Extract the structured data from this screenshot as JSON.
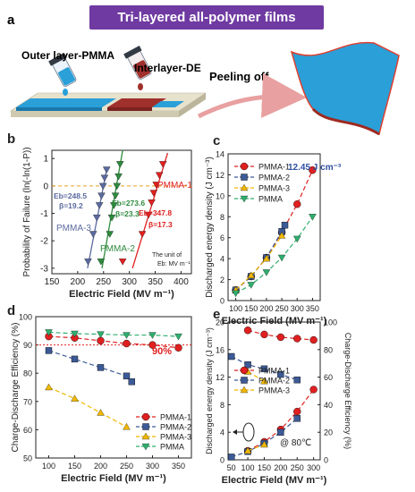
{
  "banner": "Tri-layered all-polymer films",
  "schematic": {
    "panel_label": "a",
    "outer_layer_label": "Outer layer-PMMA",
    "interlayer_label": "Interlayer-DE",
    "peeling_label": "Peeling off"
  },
  "chart_data": [
    {
      "panel": "b",
      "type": "line",
      "xlabel": "Electric Field (MV m⁻¹)",
      "ylabel": "Probability of Failure (ln(-ln(1-P))",
      "xlim": [
        150,
        420
      ],
      "ylim": [
        -3.2,
        1.3
      ],
      "xticks": [
        150,
        200,
        250,
        300,
        350,
        400
      ],
      "yticks": [
        -3,
        -2,
        -1,
        0,
        1
      ],
      "reference_line_y": 0,
      "note": [
        "The unit of",
        "Eb: MV m⁻¹"
      ],
      "series": [
        {
          "name": "PMMA-3",
          "color": "#5b6aa0",
          "eb_label": "Eb=248.5",
          "beta_label": "β=19.2",
          "fit": [
            [
              219,
              -3.0
            ],
            [
              256,
              0.6
            ]
          ],
          "x": [
            220,
            230,
            237,
            242,
            246,
            249,
            252,
            256
          ],
          "y": [
            -2.75,
            -1.75,
            -1.15,
            -0.7,
            -0.35,
            0.0,
            0.3,
            0.6
          ]
        },
        {
          "name": "PMMA-2",
          "color": "#2e8b3e",
          "eb_label": "Eb=273.6",
          "beta_label": "β=23.3",
          "fit": [
            [
              247,
              -3.0
            ],
            [
              287,
              1.3
            ]
          ],
          "x": [
            245,
            262,
            266,
            270,
            273,
            276,
            279,
            282
          ],
          "y": [
            -2.75,
            -1.75,
            -1.15,
            -0.7,
            -0.35,
            0.0,
            0.35,
            0.8
          ]
        },
        {
          "name": "PMMA-1",
          "color": "#e02020",
          "eb_label": "Eb=347.8",
          "beta_label": "β=17.3",
          "fit": [
            [
              306,
              -3.0
            ],
            [
              374,
              1.2
            ]
          ],
          "x": [
            287,
            325,
            337,
            343,
            347,
            352,
            358,
            365
          ],
          "y": [
            -2.75,
            -1.75,
            -1.05,
            -0.6,
            -0.25,
            0.05,
            0.4,
            0.8
          ]
        }
      ]
    },
    {
      "panel": "c",
      "type": "line",
      "xlabel": "Electric Field (MV m⁻¹)",
      "ylabel": "Discharged energy density (J cm⁻³)",
      "xlim": [
        75,
        375
      ],
      "ylim": [
        0,
        14
      ],
      "xticks": [
        100,
        150,
        200,
        250,
        300,
        350
      ],
      "yticks": [
        0,
        2,
        4,
        6,
        8,
        10,
        12,
        14
      ],
      "annotation": "12.45 J cm⁻³",
      "legend": "top-left",
      "series": [
        {
          "name": "PMMA-1",
          "color": "#e02020",
          "marker": "circle",
          "x": [
            100,
            150,
            200,
            250,
            300,
            350
          ],
          "y": [
            1.0,
            2.3,
            4.1,
            6.5,
            9.2,
            12.45
          ]
        },
        {
          "name": "PMMA-2",
          "color": "#3c5a96",
          "marker": "square",
          "x": [
            100,
            150,
            200,
            250,
            260
          ],
          "y": [
            1.0,
            2.3,
            4.1,
            6.6,
            7.2
          ]
        },
        {
          "name": "PMMA-3",
          "color": "#f0b800",
          "marker": "triangle-up",
          "x": [
            100,
            150,
            200,
            250
          ],
          "y": [
            1.0,
            2.4,
            4.0,
            6.2
          ]
        },
        {
          "name": "PMMA",
          "color": "#2fae6e",
          "marker": "triangle-down",
          "x": [
            100,
            150,
            200,
            250,
            300,
            350
          ],
          "y": [
            0.7,
            1.5,
            2.7,
            4.1,
            5.9,
            8.0
          ]
        }
      ]
    },
    {
      "panel": "d",
      "type": "line",
      "xlabel": "Electric Field (MV m⁻¹)",
      "ylabel": "Charge-Discharge Efficiency (%)",
      "xlim": [
        75,
        375
      ],
      "ylim": [
        50,
        100
      ],
      "xticks": [
        100,
        150,
        200,
        250,
        300,
        350
      ],
      "yticks": [
        50,
        60,
        70,
        80,
        90,
        100
      ],
      "reference_line_y": 90,
      "annotation": "90%",
      "legend": "bottom-right",
      "series": [
        {
          "name": "PMMA-1",
          "color": "#e02020",
          "marker": "circle",
          "x": [
            100,
            150,
            200,
            250,
            300,
            350
          ],
          "y": [
            93.0,
            92.5,
            91.5,
            90.5,
            90.0,
            89.0
          ]
        },
        {
          "name": "PMMA-2",
          "color": "#3c5a96",
          "marker": "square",
          "x": [
            100,
            150,
            200,
            250,
            260
          ],
          "y": [
            88.0,
            85.0,
            82.0,
            79.0,
            77.0
          ]
        },
        {
          "name": "PMMA-3",
          "color": "#f0b800",
          "marker": "triangle-up",
          "x": [
            100,
            150,
            200,
            250
          ],
          "y": [
            75.0,
            71.0,
            66.0,
            61.0
          ]
        },
        {
          "name": "PMMA",
          "color": "#2fae6e",
          "marker": "triangle-down",
          "x": [
            100,
            150,
            200,
            250,
            300,
            350
          ],
          "y": [
            94.5,
            94.0,
            93.8,
            93.5,
            93.5,
            93.0
          ]
        }
      ]
    },
    {
      "panel": "e",
      "type": "line",
      "xlabel": "Electric Field (MV m⁻¹)",
      "ylabel": "Discharged energy density (J cm⁻³)",
      "ylabel_right": "Charge-Discharge Efficiency (%)",
      "xlim": [
        40,
        320
      ],
      "ylim": [
        0,
        20
      ],
      "ylim_right": [
        0,
        100
      ],
      "xticks": [
        50,
        100,
        150,
        200,
        250,
        300
      ],
      "yticks": [
        0,
        4,
        8,
        12,
        16,
        20
      ],
      "yticks_right": [
        0,
        20,
        40,
        60,
        80,
        100
      ],
      "annotation": "@ 80℃",
      "legend": "center-left",
      "series": [
        {
          "name": "PMMA-1",
          "color": "#e02020",
          "marker": "circle",
          "axis": "left",
          "x": [
            100,
            150,
            200,
            250,
            300
          ],
          "y": [
            1.3,
            2.6,
            4.4,
            7.0,
            10.2
          ]
        },
        {
          "name": "PMMA-2",
          "color": "#3c5a96",
          "marker": "square",
          "axis": "left",
          "x": [
            50,
            100,
            150,
            200,
            250
          ],
          "y": [
            0.4,
            1.2,
            2.4,
            4.0,
            6.0
          ]
        },
        {
          "name": "PMMA-3",
          "color": "#f0b800",
          "marker": "triangle-up",
          "axis": "left",
          "x": [
            100,
            150
          ],
          "y": [
            1.3,
            2.2
          ]
        },
        {
          "name": "PMMA-1",
          "color": "#e02020",
          "marker": "circle",
          "axis": "right",
          "x": [
            100,
            150,
            200,
            250,
            300
          ],
          "y": [
            94.0,
            91.0,
            89.0,
            88.0,
            87.0
          ]
        },
        {
          "name": "PMMA-2",
          "color": "#3c5a96",
          "marker": "square",
          "axis": "right",
          "x": [
            50,
            100,
            150,
            200,
            250
          ],
          "y": [
            75.0,
            69.0,
            66.0,
            62.0,
            58.0
          ]
        },
        {
          "name": "PMMA-3",
          "color": "#f0b800",
          "marker": "triangle-up",
          "axis": "right",
          "x": [
            100,
            150
          ],
          "y": [
            64.0,
            57.0
          ]
        }
      ]
    }
  ]
}
